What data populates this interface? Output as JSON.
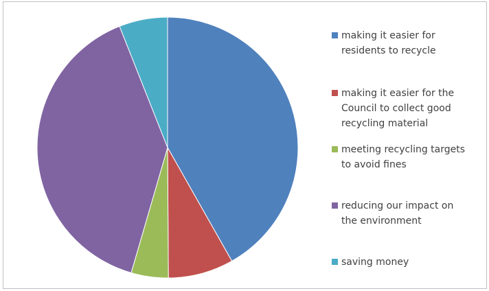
{
  "chart_data": {
    "type": "pie",
    "title": "",
    "start_angle": "12 o'clock, clockwise",
    "slices": [
      {
        "label": "making it easier for residents to recycle",
        "value": 41.8,
        "color": "#4f81bd"
      },
      {
        "label": "making it easier for the Council to collect good recycling material",
        "value": 8.1,
        "color": "#c0504d"
      },
      {
        "label": "meeting recycling targets to avoid fines",
        "value": 4.6,
        "color": "#9bbb59"
      },
      {
        "label": "reducing our impact on the environment",
        "value": 39.5,
        "color": "#8064a2"
      },
      {
        "label": "saving money",
        "value": 6.0,
        "color": "#4bacc6"
      }
    ],
    "legend_position": "right"
  },
  "legend": {
    "items": [
      {
        "line1": "making it easier for",
        "line2": "residents to recycle",
        "line3": ""
      },
      {
        "line1": "making it easier for the",
        "line2": "Council to collect good",
        "line3": "recycling material"
      },
      {
        "line1": "meeting recycling targets",
        "line2": "to avoid fines",
        "line3": ""
      },
      {
        "line1": "reducing our impact on",
        "line2": "the environment",
        "line3": ""
      },
      {
        "line1": "saving money",
        "line2": "",
        "line3": ""
      }
    ]
  }
}
